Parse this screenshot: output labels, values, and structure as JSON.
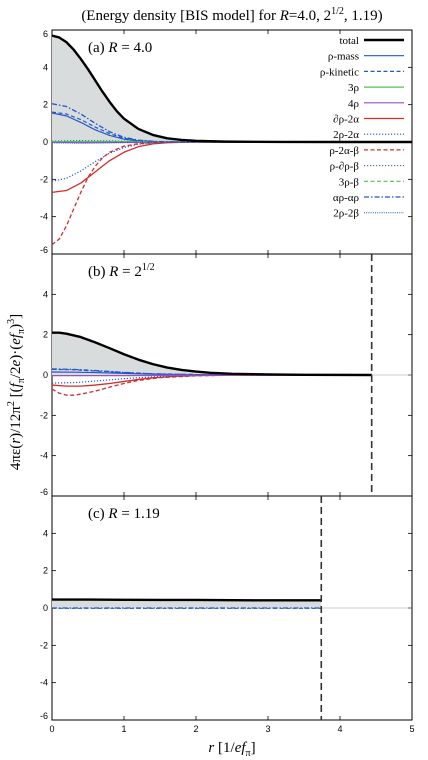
{
  "title": {
    "text": "(Energy density [BIS model] for R=4.0, 2^1/2, 1.19)",
    "pre": "(Energy density [BIS model] for ",
    "R": "R",
    "mid": "=4.0, 2",
    "sup": "1/2",
    "post": ", 1.19)"
  },
  "ylabel": {
    "text": "4πε(r)/12π² [(fπ/2e)·(efπ)³]",
    "p1": "4πε(",
    "r": "r",
    "p2": ")/12π",
    "sup2": "2",
    "p3": " [(",
    "f1": "f",
    "sub1": "π",
    "p4": "/2",
    "e1": "e",
    "p5": ")·(",
    "ef": "ef",
    "sub2": "π",
    "p6": ")",
    "sup3": "3",
    "p7": "]"
  },
  "xlabel": {
    "text": "r [1/efπ]",
    "r": "r",
    "p1": " [1/",
    "ef": "ef",
    "sub": "π",
    "p2": "]"
  },
  "colors": {
    "total": "#000000",
    "fill": "#d8dcdc",
    "blue": "#2358c8",
    "red": "#d42a2a",
    "green": "#4cc34c",
    "purple": "#9b4fc0",
    "dashed_vertical": "#333333"
  },
  "chart_data": [
    {
      "type": "line",
      "panel_label": "(a) R = 4.0",
      "label_parts": {
        "pre": "(a) ",
        "R": "R",
        "post": " = 4.0"
      },
      "xlim": [
        0,
        5
      ],
      "ylim": [
        -6,
        6
      ],
      "xticks": [
        0,
        1,
        2,
        3,
        4,
        5
      ],
      "yticks": [
        -6,
        -4,
        -2,
        0,
        2,
        4,
        6
      ],
      "legend": "right",
      "series": [
        {
          "name": "total",
          "color": "#000000",
          "style": "solid",
          "width": 2.4,
          "fill": true,
          "x": [
            0,
            0.1,
            0.2,
            0.3,
            0.4,
            0.5,
            0.6,
            0.7,
            0.8,
            0.9,
            1.0,
            1.2,
            1.4,
            1.6,
            1.8,
            2.0,
            2.4,
            2.8,
            3.2,
            4.0,
            5.0
          ],
          "y": [
            5.7,
            5.6,
            5.35,
            4.95,
            4.45,
            3.9,
            3.3,
            2.7,
            2.15,
            1.65,
            1.25,
            0.7,
            0.38,
            0.2,
            0.11,
            0.06,
            0.02,
            0.01,
            0.005,
            0,
            0
          ]
        },
        {
          "name": "ρ-mass",
          "color": "#2358c8",
          "style": "solid",
          "width": 1.2,
          "x": [
            0,
            0.2,
            0.4,
            0.6,
            0.8,
            1.0,
            1.2,
            1.4,
            1.6,
            2.0,
            5.0
          ],
          "y": [
            1.55,
            1.4,
            1.05,
            0.65,
            0.35,
            0.15,
            0.06,
            0.02,
            0.01,
            0,
            0
          ]
        },
        {
          "name": "ρ-kinetic",
          "color": "#2358c8",
          "style": "dash",
          "width": 1.2,
          "x": [
            0,
            0.2,
            0.4,
            0.6,
            0.8,
            1.0,
            1.2,
            1.4,
            1.6,
            2.0,
            5.0
          ],
          "y": [
            1.6,
            1.5,
            1.2,
            0.8,
            0.45,
            0.2,
            0.08,
            0.03,
            0.01,
            0,
            0
          ]
        },
        {
          "name": "3ρ",
          "color": "#4cc34c",
          "style": "solid",
          "width": 1.2,
          "x": [
            0,
            0.5,
            1.0,
            1.5,
            2.0,
            5.0
          ],
          "y": [
            0.0,
            0.01,
            0.02,
            0.01,
            0,
            0
          ]
        },
        {
          "name": "4ρ",
          "color": "#9b4fc0",
          "style": "solid",
          "width": 1.2,
          "x": [
            0,
            0.5,
            1.0,
            1.5,
            2.0,
            5.0
          ],
          "y": [
            -0.02,
            -0.04,
            -0.03,
            -0.01,
            0,
            0
          ]
        },
        {
          "name": "∂ρ-2α",
          "color": "#d42a2a",
          "style": "solid",
          "width": 1.3,
          "x": [
            0,
            0.2,
            0.4,
            0.6,
            0.8,
            1.0,
            1.2,
            1.4,
            1.6,
            2.0,
            5.0
          ],
          "y": [
            -2.7,
            -2.6,
            -2.2,
            -1.6,
            -1.0,
            -0.55,
            -0.25,
            -0.1,
            -0.04,
            0,
            0
          ]
        },
        {
          "name": "2ρ-2α",
          "color": "#2358c8",
          "style": "dot",
          "width": 1.2,
          "x": [
            0,
            0.2,
            0.4,
            0.6,
            0.8,
            1.0,
            1.2,
            1.4,
            1.6,
            2.0,
            5.0
          ],
          "y": [
            -2.1,
            -1.95,
            -1.55,
            -1.05,
            -0.6,
            -0.3,
            -0.12,
            -0.05,
            -0.02,
            0,
            0
          ]
        },
        {
          "name": "ρ-2α-β",
          "color": "#d42a2a",
          "style": "dash",
          "width": 1.3,
          "x": [
            0,
            0.1,
            0.2,
            0.3,
            0.4,
            0.5,
            0.6,
            0.7,
            0.8,
            1.0,
            1.2,
            1.4,
            1.6,
            1.8,
            2.0,
            5.0
          ],
          "y": [
            -5.5,
            -5.2,
            -4.5,
            -3.6,
            -2.7,
            -1.9,
            -1.3,
            -0.85,
            -0.55,
            -0.22,
            -0.09,
            -0.04,
            -0.02,
            -0.01,
            0,
            0
          ]
        },
        {
          "name": "ρ-∂ρ-β",
          "color": "#2358c8",
          "style": "dot",
          "width": 1.0,
          "x": [
            0,
            0.4,
            0.8,
            1.2,
            1.6,
            2.0,
            5.0
          ],
          "y": [
            0.05,
            0.08,
            0.06,
            0.03,
            0.01,
            0,
            0
          ]
        },
        {
          "name": "3ρ-β",
          "color": "#4cc34c",
          "style": "dash",
          "width": 1.2,
          "x": [
            0,
            0.5,
            1.0,
            1.5,
            2.0,
            5.0
          ],
          "y": [
            0.02,
            0.03,
            0.02,
            0.01,
            0,
            0
          ]
        },
        {
          "name": "αρ-αρ",
          "color": "#2358c8",
          "style": "dashdot",
          "width": 1.3,
          "x": [
            0,
            0.2,
            0.4,
            0.6,
            0.8,
            1.0,
            1.2,
            1.4,
            1.6,
            2.0,
            5.0
          ],
          "y": [
            2.05,
            1.9,
            1.5,
            1.0,
            0.55,
            0.25,
            0.1,
            0.04,
            0.01,
            0,
            0
          ]
        },
        {
          "name": "2ρ-2β",
          "color": "#2358c8",
          "style": "densedot",
          "width": 1.0,
          "x": [
            0,
            0.4,
            0.8,
            1.2,
            1.6,
            2.0,
            5.0
          ],
          "y": [
            -0.05,
            -0.06,
            -0.04,
            -0.02,
            -0.01,
            0,
            0
          ]
        }
      ]
    },
    {
      "type": "line",
      "panel_label": "(b) R = 2^1/2",
      "label_parts": {
        "pre": "(b) ",
        "R": "R",
        "post": " = 2",
        "sup": "1/2"
      },
      "xlim": [
        0,
        5
      ],
      "ylim": [
        -6,
        6
      ],
      "xticks": [
        0,
        1,
        2,
        3,
        4,
        5
      ],
      "yticks": [
        -6,
        -4,
        -2,
        0,
        2,
        4,
        6
      ],
      "vline_x": 4.44,
      "series": [
        {
          "name": "total",
          "color": "#000000",
          "style": "solid",
          "width": 2.4,
          "fill": true,
          "x": [
            0,
            0.1,
            0.2,
            0.4,
            0.6,
            0.8,
            1.0,
            1.2,
            1.4,
            1.6,
            1.8,
            2.0,
            2.2,
            2.5,
            3.0,
            3.5,
            4.44
          ],
          "y": [
            2.1,
            2.1,
            2.05,
            1.88,
            1.62,
            1.33,
            1.03,
            0.76,
            0.54,
            0.37,
            0.25,
            0.17,
            0.11,
            0.06,
            0.03,
            0.01,
            0
          ]
        },
        {
          "name": "ρ-mass",
          "color": "#2358c8",
          "style": "solid",
          "width": 1.2,
          "x": [
            0,
            0.3,
            0.6,
            1.0,
            1.4,
            2.0,
            4.44
          ],
          "y": [
            0.15,
            0.14,
            0.12,
            0.08,
            0.04,
            0.01,
            0
          ]
        },
        {
          "name": "ρ-kinetic",
          "color": "#2358c8",
          "style": "dash",
          "width": 1.2,
          "x": [
            0,
            0.3,
            0.6,
            1.0,
            1.4,
            2.0,
            4.44
          ],
          "y": [
            0.28,
            0.26,
            0.2,
            0.12,
            0.06,
            0.02,
            0
          ]
        },
        {
          "name": "∂ρ-2α",
          "color": "#d42a2a",
          "style": "solid",
          "width": 1.3,
          "x": [
            0,
            0.2,
            0.4,
            0.6,
            0.8,
            1.0,
            1.2,
            1.4,
            1.7,
            2.0,
            2.5,
            4.44
          ],
          "y": [
            -0.5,
            -0.55,
            -0.55,
            -0.5,
            -0.42,
            -0.32,
            -0.22,
            -0.14,
            -0.07,
            -0.03,
            -0.01,
            0
          ]
        },
        {
          "name": "ρ-2α-β",
          "color": "#d42a2a",
          "style": "dash",
          "width": 1.3,
          "x": [
            0,
            0.1,
            0.2,
            0.3,
            0.4,
            0.6,
            0.8,
            1.0,
            1.2,
            1.5,
            2.0,
            2.5,
            4.44
          ],
          "y": [
            -0.7,
            -0.9,
            -1.0,
            -1.0,
            -0.95,
            -0.8,
            -0.6,
            -0.42,
            -0.27,
            -0.13,
            -0.04,
            -0.01,
            0
          ]
        },
        {
          "name": "2ρ-2α",
          "color": "#2358c8",
          "style": "dot",
          "width": 1.2,
          "x": [
            0,
            0.3,
            0.6,
            1.0,
            1.5,
            2.0,
            4.44
          ],
          "y": [
            -0.4,
            -0.38,
            -0.3,
            -0.18,
            -0.07,
            -0.02,
            0
          ]
        },
        {
          "name": "αρ-αρ",
          "color": "#2358c8",
          "style": "dashdot",
          "width": 1.3,
          "x": [
            0,
            0.3,
            0.6,
            1.0,
            1.4,
            2.0,
            4.44
          ],
          "y": [
            0.3,
            0.28,
            0.22,
            0.13,
            0.06,
            0.02,
            0
          ]
        },
        {
          "name": "4ρ",
          "color": "#9b4fc0",
          "style": "solid",
          "width": 1.2,
          "x": [
            0,
            1.0,
            2.0,
            4.44
          ],
          "y": [
            -0.03,
            -0.03,
            -0.01,
            0
          ]
        }
      ]
    },
    {
      "type": "line",
      "panel_label": "(c) R = 1.19",
      "label_parts": {
        "pre": "(c) ",
        "R": "R",
        "post": " = 1.19"
      },
      "xlim": [
        0,
        5
      ],
      "ylim": [
        -6,
        6
      ],
      "xticks": [
        0,
        1,
        2,
        3,
        4,
        5
      ],
      "yticks": [
        -6,
        -4,
        -2,
        0,
        2,
        4,
        6
      ],
      "vline_x": 3.74,
      "series": [
        {
          "name": "total",
          "color": "#000000",
          "style": "solid",
          "width": 2.4,
          "fill": true,
          "x": [
            0,
            0.5,
            1.0,
            1.5,
            2.0,
            2.5,
            3.0,
            3.5,
            3.74
          ],
          "y": [
            0.45,
            0.45,
            0.44,
            0.43,
            0.43,
            0.42,
            0.41,
            0.41,
            0.41
          ]
        },
        {
          "name": "αρ-αρ",
          "color": "#2358c8",
          "style": "dashdot",
          "width": 1.2,
          "x": [
            0,
            3.74
          ],
          "y": [
            0.0,
            0.0
          ]
        },
        {
          "name": "ρ-kinetic",
          "color": "#2358c8",
          "style": "dash",
          "width": 1.0,
          "x": [
            0,
            3.74
          ],
          "y": [
            -0.02,
            -0.02
          ]
        }
      ]
    }
  ]
}
